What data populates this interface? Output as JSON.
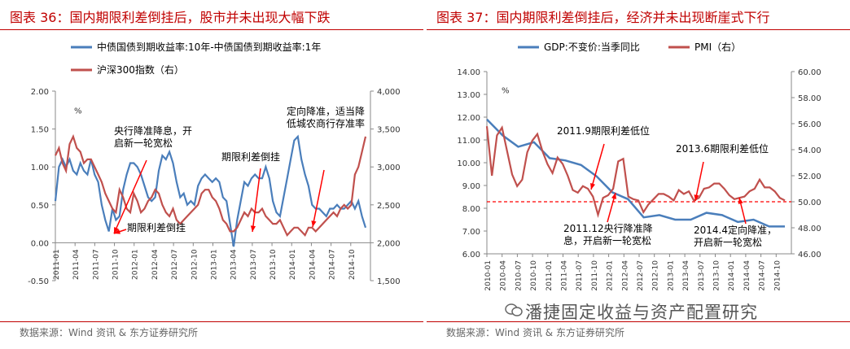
{
  "left": {
    "title": "图表 36：国内期限利差倒挂后，股市并未出现大幅下跌",
    "source": "数据来源：Wind 资讯 & 东方证券研究所",
    "chart_data": {
      "type": "line",
      "x_ticks": [
        "2011-01",
        "2011-04",
        "2011-07",
        "2011-10",
        "2012-01",
        "2012-04",
        "2012-07",
        "2012-10",
        "2013-01",
        "2013-04",
        "2013-07",
        "2013-10",
        "2014-01",
        "2014-04",
        "2014-07",
        "2014-10"
      ],
      "ylim_left": [
        -0.5,
        2.0
      ],
      "y_ticks_left": [
        "-0.50",
        "0.00",
        "0.50",
        "1.00",
        "1.50",
        "2.00"
      ],
      "ylim_right": [
        1500,
        4000
      ],
      "y_ticks_right": [
        "1,500",
        "2,000",
        "2,500",
        "3,000",
        "3,500",
        "4,000"
      ],
      "unit_left": "%",
      "series": [
        {
          "name": "中债国债到期收益率:10年-中债国债到期收益率:1年",
          "color": "#4a7ebb",
          "axis": "left",
          "values": [
            0.55,
            1.0,
            1.1,
            1.0,
            1.1,
            0.95,
            0.9,
            1.05,
            0.95,
            0.9,
            1.1,
            0.9,
            0.8,
            0.5,
            0.3,
            0.15,
            0.45,
            0.3,
            0.35,
            0.7,
            0.9,
            1.05,
            1.05,
            1.0,
            0.9,
            0.75,
            0.6,
            0.55,
            0.6,
            0.95,
            1.15,
            1.1,
            1.2,
            1.05,
            0.8,
            0.6,
            0.65,
            0.5,
            0.55,
            0.5,
            0.75,
            0.85,
            0.9,
            0.85,
            0.8,
            0.85,
            0.8,
            0.6,
            0.55,
            0.25,
            -0.05,
            0.3,
            0.55,
            0.8,
            0.75,
            0.85,
            0.9,
            0.85,
            0.85,
            1.0,
            0.85,
            0.55,
            0.4,
            0.35,
            0.6,
            0.85,
            1.1,
            1.35,
            1.4,
            1.1,
            0.9,
            0.75,
            0.5,
            0.45,
            0.45,
            0.4,
            0.35,
            0.45,
            0.45,
            0.5,
            0.45,
            0.45,
            0.5,
            0.55,
            0.45,
            0.55,
            0.35,
            0.2
          ]
        },
        {
          "name": "沪深300指数（右）",
          "color": "#c0504d",
          "axis": "right",
          "values": [
            3150,
            3250,
            3050,
            2950,
            3300,
            3400,
            3250,
            3200,
            3050,
            3100,
            3100,
            3000,
            2900,
            2800,
            2650,
            2550,
            2450,
            2400,
            2700,
            2600,
            2450,
            2400,
            2650,
            2550,
            2400,
            2450,
            2550,
            2600,
            2700,
            2650,
            2500,
            2400,
            2350,
            2450,
            2300,
            2250,
            2300,
            2350,
            2400,
            2450,
            2500,
            2650,
            2700,
            2700,
            2600,
            2550,
            2450,
            2300,
            2250,
            2150,
            2150,
            2200,
            2300,
            2400,
            2350,
            2450,
            2400,
            2400,
            2450,
            2350,
            2300,
            2250,
            2250,
            2300,
            2200,
            2100,
            2150,
            2200,
            2200,
            2150,
            2100,
            2200,
            2200,
            2150,
            2200,
            2250,
            2300,
            2350,
            2400,
            2350,
            2450,
            2500,
            2450,
            2500,
            2900,
            3000,
            3200,
            3400
          ]
        }
      ],
      "annotations": [
        "央行降准降息，开启新一轮宽松",
        "期限利差倒挂",
        "期限利差倒挂",
        "定向降准，适当降低城农商行存准率"
      ]
    }
  },
  "right": {
    "title": "图表 37：国内期限利差倒挂后，经济并未出现断崖式下行",
    "source": "数据来源：Wind 资讯 & 东方证券研究所",
    "chart_data": {
      "type": "line",
      "x_ticks": [
        "2010-01",
        "2010-04",
        "2010-07",
        "2010-10",
        "2011-01",
        "2011-04",
        "2011-07",
        "2011-10",
        "2012-01",
        "2012-04",
        "2012-07",
        "2012-10",
        "2013-01",
        "2013-04",
        "2013-07",
        "2013-10",
        "2014-01",
        "2014-04",
        "2014-07",
        "2014-10"
      ],
      "ylim_left": [
        6.0,
        14.0
      ],
      "y_ticks_left": [
        "6.00",
        "7.00",
        "8.00",
        "9.00",
        "10.00",
        "11.00",
        "12.00",
        "13.00",
        "14.00"
      ],
      "ylim_right": [
        46.0,
        60.0
      ],
      "y_ticks_right": [
        "46.00",
        "48.00",
        "50.00",
        "52.00",
        "54.00",
        "56.00",
        "58.00",
        "60.00"
      ],
      "unit_left": "%",
      "reference_line": 50.0,
      "series": [
        {
          "name": "GDP:不变价:当季同比",
          "color": "#4a7ebb",
          "axis": "left",
          "quarterly_values": [
            11.9,
            11.2,
            10.7,
            10.9,
            10.2,
            10.1,
            9.9,
            9.4,
            8.7,
            8.4,
            7.6,
            7.7,
            7.5,
            7.5,
            7.8,
            7.7,
            7.4,
            7.5,
            7.2,
            7.2
          ]
        },
        {
          "name": "PMI（右）",
          "color": "#c0504d",
          "axis": "right",
          "values": [
            55.8,
            52.0,
            55.1,
            55.7,
            53.9,
            52.1,
            51.2,
            51.7,
            53.8,
            54.7,
            55.2,
            53.9,
            52.9,
            52.2,
            53.4,
            52.9,
            52.0,
            50.9,
            50.7,
            51.2,
            51.0,
            50.4,
            49.0,
            50.3,
            50.5,
            51.0,
            53.1,
            53.3,
            50.4,
            50.2,
            50.1,
            49.2,
            49.8,
            50.2,
            50.6,
            50.6,
            50.4,
            50.1,
            50.9,
            50.6,
            50.8,
            50.1,
            50.3,
            51.0,
            51.1,
            51.4,
            51.4,
            51.0,
            50.5,
            50.2,
            50.3,
            50.4,
            50.8,
            51.0,
            51.7,
            51.1,
            51.1,
            50.8,
            50.3,
            50.1
          ]
        }
      ],
      "annotations": [
        "2011.9期限利差低位",
        "2013.6期限利差低位",
        "2011.12央行降准降息，开启新一轮宽松",
        "2014.4定向降准，开启新一轮宽松"
      ]
    }
  },
  "watermark": "潘捷固定收益与资产配置研究"
}
